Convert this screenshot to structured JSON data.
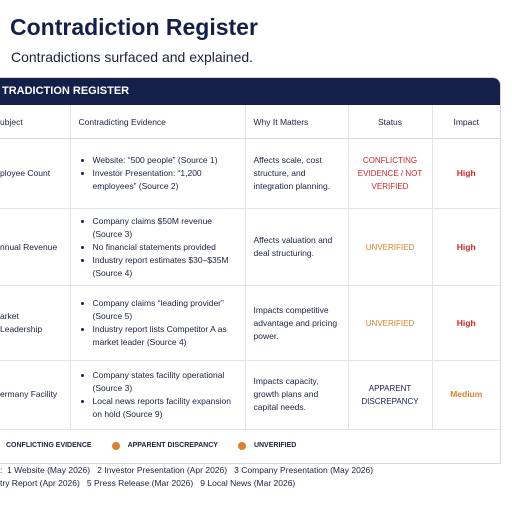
{
  "header": {
    "title": "Contradiction Register",
    "subtitle": "Contradictions surfaced and explained."
  },
  "table": {
    "banner": "TRADICTION REGISTER",
    "columns": [
      "ubject",
      "Contradicting Evidence",
      "Why It Matters",
      "Status",
      "Impact"
    ],
    "rows": [
      {
        "subject": "ployee Count",
        "evidence": [
          "Website: “500 people” (Source 1)",
          "Investor Presentation: “1,200 employees” (Source 2)"
        ],
        "why": "Affects scale, cost structure, and integration planning.",
        "status": "CONFLICTING EVIDENCE / NOT VERIFIED",
        "impact": "High"
      },
      {
        "subject": "nnual Revenue",
        "evidence": [
          "Company claims $50M revenue (Source 3)",
          "No financial statements provided",
          "Industry report estimates $30–$35M (Source 4)"
        ],
        "why": "Affects valuation and deal structuring.",
        "status": "UNVERIFIED",
        "impact": "High"
      },
      {
        "subject": "arket Leadership",
        "evidence": [
          "Company claims “leading provider” (Source 5)",
          "Industry report lists Competitor A as market leader (Source 4)"
        ],
        "why": "Impacts competitive advantage and pricing power.",
        "status": "UNVERIFIED",
        "impact": "High"
      },
      {
        "subject": "ermany Facility",
        "evidence": [
          "Company states facility operational (Source 3)",
          "Local news reports facility expansion on hold (Source 9)"
        ],
        "why": "Impacts capacity, growth plans and capital needs.",
        "status": "APPARENT DISCREPANCY",
        "impact": "Medium"
      }
    ]
  },
  "legend": [
    "CONFLICTING EVIDENCE",
    "APPARENT DISCREPANCY",
    "UNVERIFIED"
  ],
  "sources": [
    ":  1 Website (May 2026)   2 Investor Presentation (Apr 2026)   3 Company Presentation (May 2026)",
    "try Report (Apr 2026)   5 Press Release (Mar 2026)   9 Local News (Mar 2026)"
  ]
}
